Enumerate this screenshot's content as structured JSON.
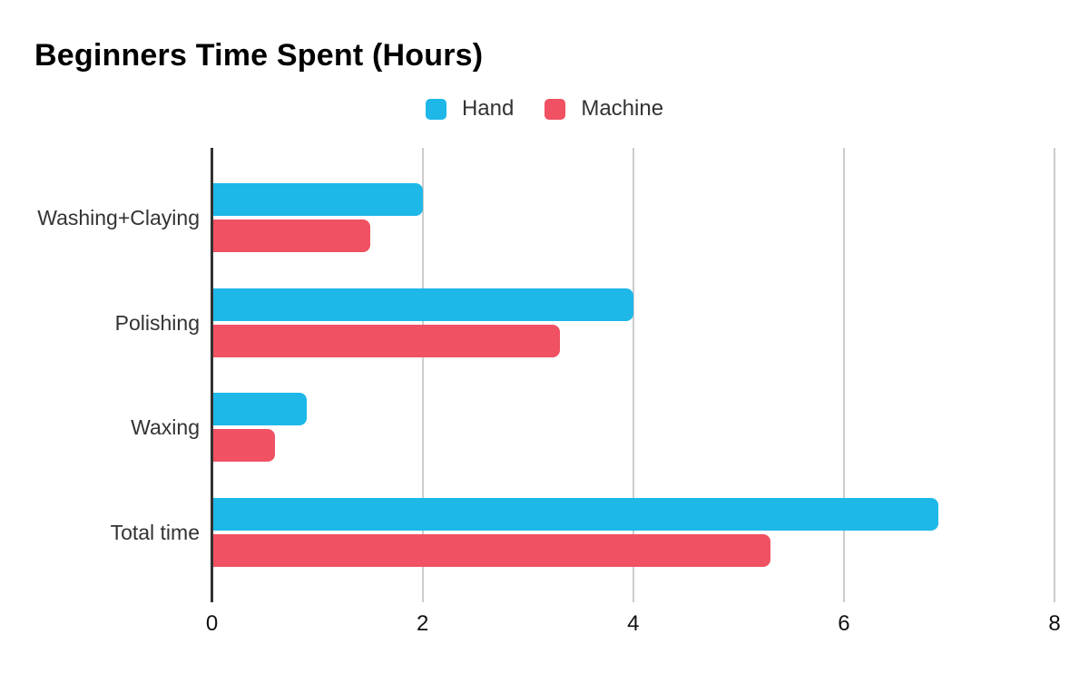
{
  "header": {
    "title": "Beginners Time Spent (Hours)"
  },
  "legend": {
    "items": [
      {
        "label": "Hand",
        "color": "#1db8e8"
      },
      {
        "label": "Machine",
        "color": "#f05163"
      }
    ]
  },
  "chart_data": {
    "type": "bar",
    "orientation": "horizontal",
    "title": "Beginners Time Spent (Hours)",
    "categories": [
      "Washing+Claying",
      "Polishing",
      "Waxing",
      "Total time"
    ],
    "series": [
      {
        "name": "Hand",
        "color": "#1db8e8",
        "values": [
          2,
          4,
          0.9,
          6.9
        ]
      },
      {
        "name": "Machine",
        "color": "#f05163",
        "values": [
          1.5,
          3.3,
          0.6,
          5.3
        ]
      }
    ],
    "xlabel": "",
    "ylabel": "",
    "xlim": [
      0,
      8
    ],
    "xticks": [
      0,
      2,
      4,
      6,
      8
    ],
    "grid": true,
    "legend_position": "top-center",
    "colors": {
      "axis": "#333333",
      "gridline": "#cccccc",
      "title_text": "#000000",
      "label_text": "#333333"
    }
  }
}
